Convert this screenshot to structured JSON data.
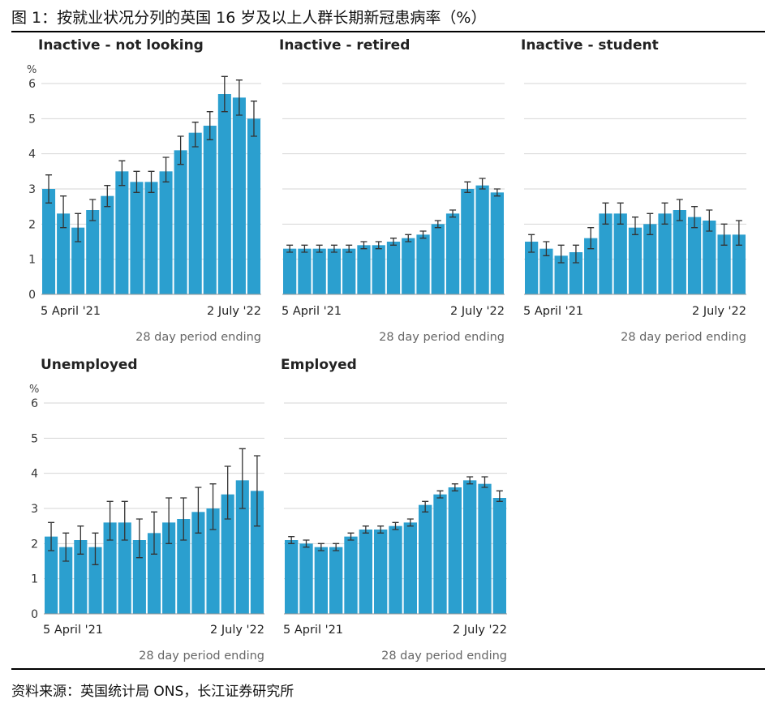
{
  "figure_title": "图 1：按就业状况分列的英国 16 岁及以上人群长期新冠患病率（%）",
  "source_note": "资料来源：英国统计局 ONS，长江证券研究所",
  "colors": {
    "bar": "#2b9fcf",
    "grid": "#d6d6d6",
    "error_bar": "#333333"
  },
  "chart_data": [
    {
      "type": "bar",
      "title": "Inactive - not looking",
      "ylabel": "%",
      "xlabel": "28 day period ending",
      "x_start_label": "5 April '21",
      "x_end_label": "2 July '22",
      "ylim": [
        0,
        6
      ],
      "yticks": [
        0,
        1,
        2,
        3,
        4,
        5,
        6
      ],
      "show_y_tick_labels": true,
      "values": [
        3.0,
        2.3,
        1.9,
        2.4,
        2.8,
        3.5,
        3.2,
        3.2,
        3.5,
        4.1,
        4.6,
        4.8,
        5.7,
        5.6,
        5.0
      ],
      "lower": [
        2.6,
        1.9,
        1.5,
        2.1,
        2.5,
        3.1,
        2.9,
        2.9,
        3.2,
        3.7,
        4.2,
        4.4,
        5.2,
        5.1,
        4.5
      ],
      "upper": [
        3.4,
        2.8,
        2.3,
        2.7,
        3.1,
        3.8,
        3.5,
        3.5,
        3.9,
        4.5,
        4.9,
        5.2,
        6.2,
        6.1,
        5.5
      ]
    },
    {
      "type": "bar",
      "title": "Inactive - retired",
      "xlabel": "28 day period ending",
      "x_start_label": "5 April '21",
      "x_end_label": "2 July '22",
      "ylim": [
        0,
        6
      ],
      "yticks": [
        0,
        1,
        2,
        3,
        4,
        5,
        6
      ],
      "show_y_tick_labels": false,
      "values": [
        1.3,
        1.3,
        1.3,
        1.3,
        1.3,
        1.4,
        1.4,
        1.5,
        1.6,
        1.7,
        2.0,
        2.3,
        3.0,
        3.1,
        2.9
      ],
      "lower": [
        1.2,
        1.2,
        1.2,
        1.2,
        1.2,
        1.3,
        1.3,
        1.4,
        1.5,
        1.6,
        1.9,
        2.2,
        2.9,
        3.0,
        2.8
      ],
      "upper": [
        1.4,
        1.4,
        1.4,
        1.4,
        1.4,
        1.5,
        1.5,
        1.6,
        1.7,
        1.8,
        2.1,
        2.4,
        3.2,
        3.3,
        3.0
      ]
    },
    {
      "type": "bar",
      "title": "Inactive - student",
      "xlabel": "28 day period ending",
      "x_start_label": "5 April '21",
      "x_end_label": "2 July '22",
      "ylim": [
        0,
        6
      ],
      "yticks": [
        0,
        1,
        2,
        3,
        4,
        5,
        6
      ],
      "show_y_tick_labels": false,
      "values": [
        1.5,
        1.3,
        1.1,
        1.2,
        1.6,
        2.3,
        2.3,
        1.9,
        2.0,
        2.3,
        2.4,
        2.2,
        2.1,
        1.7,
        1.7
      ],
      "lower": [
        1.2,
        1.1,
        0.9,
        0.9,
        1.3,
        2.0,
        2.0,
        1.7,
        1.7,
        2.0,
        2.1,
        1.9,
        1.8,
        1.4,
        1.4
      ],
      "upper": [
        1.7,
        1.5,
        1.4,
        1.4,
        1.9,
        2.6,
        2.6,
        2.2,
        2.3,
        2.6,
        2.7,
        2.5,
        2.4,
        2.0,
        2.1
      ]
    },
    {
      "type": "bar",
      "title": "Unemployed",
      "ylabel": "%",
      "xlabel": "28 day period ending",
      "x_start_label": "5 April '21",
      "x_end_label": "2 July '22",
      "ylim": [
        0,
        6
      ],
      "yticks": [
        0,
        1,
        2,
        3,
        4,
        5,
        6
      ],
      "show_y_tick_labels": true,
      "values": [
        2.2,
        1.9,
        2.1,
        1.9,
        2.6,
        2.6,
        2.1,
        2.3,
        2.6,
        2.7,
        2.9,
        3.0,
        3.4,
        3.8,
        3.5
      ],
      "lower": [
        1.8,
        1.5,
        1.7,
        1.4,
        2.1,
        2.1,
        1.6,
        1.7,
        2.0,
        2.1,
        2.3,
        2.4,
        2.7,
        3.0,
        2.5
      ],
      "upper": [
        2.6,
        2.3,
        2.5,
        2.3,
        3.2,
        3.2,
        2.7,
        2.9,
        3.3,
        3.3,
        3.6,
        3.7,
        4.2,
        4.7,
        4.5
      ]
    },
    {
      "type": "bar",
      "title": "Employed",
      "xlabel": "28 day period ending",
      "x_start_label": "5 April '21",
      "x_end_label": "2 July '22",
      "ylim": [
        0,
        6
      ],
      "yticks": [
        0,
        1,
        2,
        3,
        4,
        5,
        6
      ],
      "show_y_tick_labels": false,
      "values": [
        2.1,
        2.0,
        1.9,
        1.9,
        2.2,
        2.4,
        2.4,
        2.5,
        2.6,
        3.1,
        3.4,
        3.6,
        3.8,
        3.7,
        3.3
      ],
      "lower": [
        2.0,
        1.9,
        1.8,
        1.8,
        2.1,
        2.3,
        2.3,
        2.4,
        2.5,
        2.9,
        3.3,
        3.5,
        3.7,
        3.6,
        3.2
      ],
      "upper": [
        2.2,
        2.1,
        2.0,
        2.0,
        2.3,
        2.5,
        2.5,
        2.6,
        2.7,
        3.2,
        3.5,
        3.7,
        3.9,
        3.9,
        3.5
      ]
    }
  ]
}
